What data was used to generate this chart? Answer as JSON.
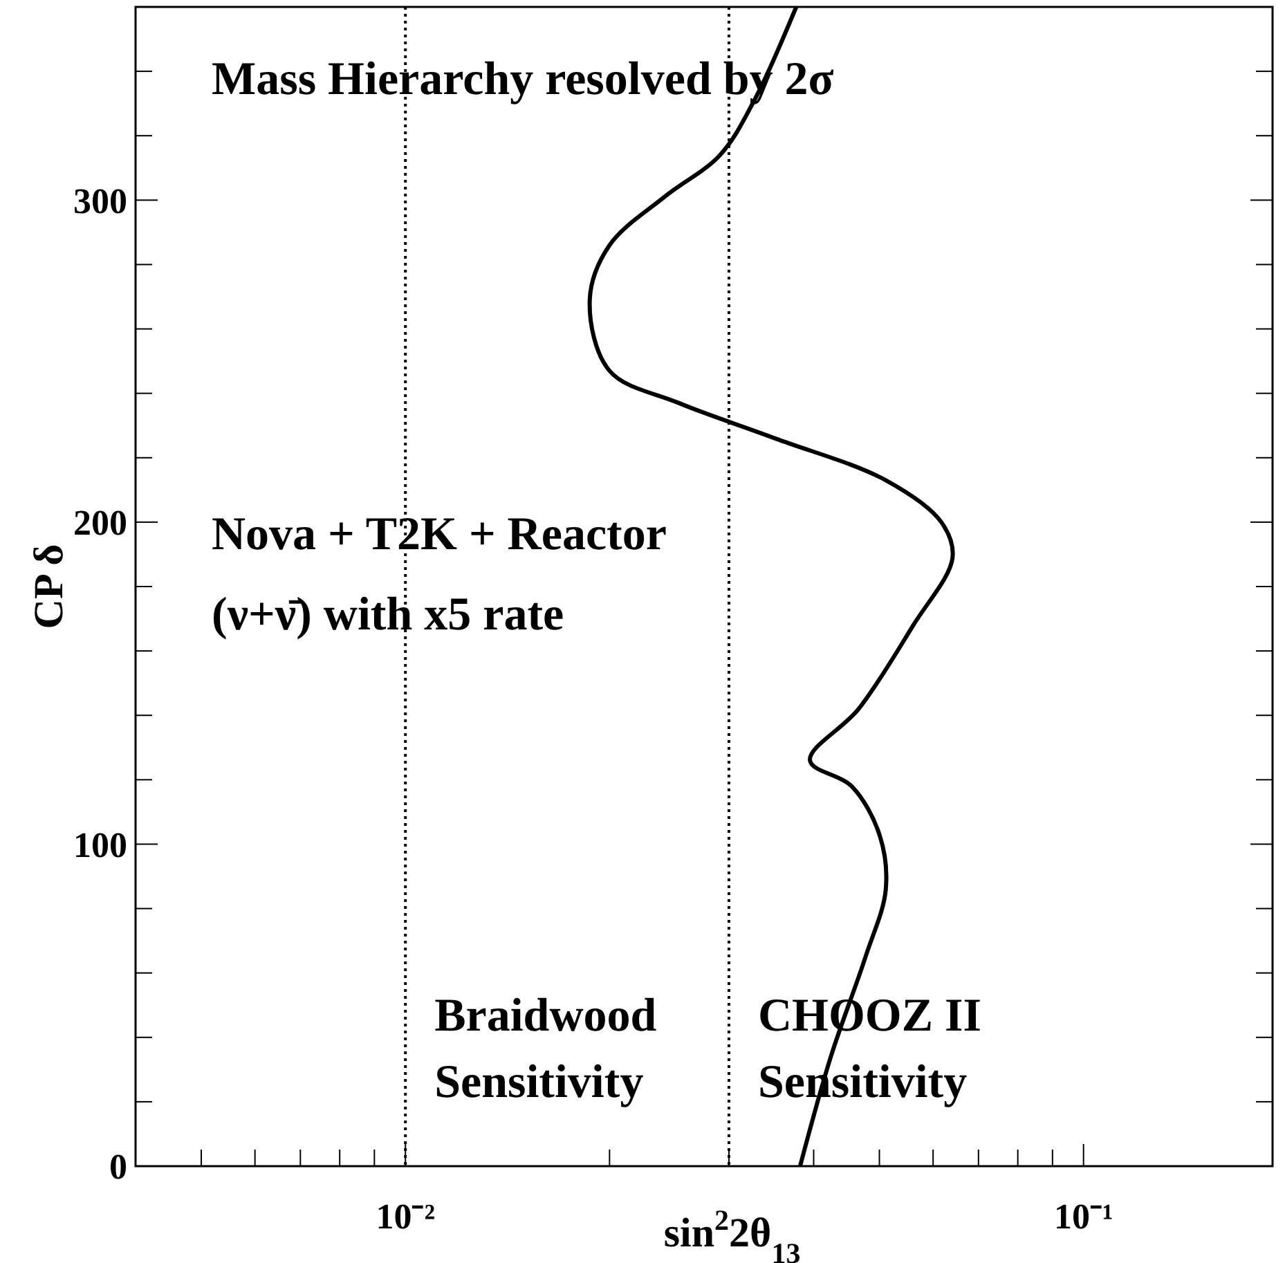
{
  "chart_data": {
    "type": "line",
    "xlabel": "sin$^{2}$2θ$_{13}$",
    "ylabel": "CP δ",
    "log": "x",
    "xlim": [
      0.004,
      0.19
    ],
    "ylim": [
      0,
      360
    ],
    "xticks": [
      {
        "value": 0.005,
        "label": null
      },
      {
        "value": 0.006,
        "label": null
      },
      {
        "value": 0.007,
        "label": null
      },
      {
        "value": 0.008,
        "label": null
      },
      {
        "value": 0.009,
        "label": null
      },
      {
        "value": 0.01,
        "label": "10⁻²"
      },
      {
        "value": 0.02,
        "label": null
      },
      {
        "value": 0.03,
        "label": null
      },
      {
        "value": 0.04,
        "label": null
      },
      {
        "value": 0.05,
        "label": null
      },
      {
        "value": 0.06,
        "label": null
      },
      {
        "value": 0.07,
        "label": null
      },
      {
        "value": 0.08,
        "label": null
      },
      {
        "value": 0.09,
        "label": null
      },
      {
        "value": 0.1,
        "label": "10⁻¹"
      }
    ],
    "yticks": [
      0,
      {
        "value": 20,
        "label": null
      },
      {
        "value": 40,
        "label": null
      },
      {
        "value": 60,
        "label": null
      },
      {
        "value": 80,
        "label": null
      },
      100,
      {
        "value": 120,
        "label": null
      },
      {
        "value": 140,
        "label": null
      },
      {
        "value": 160,
        "label": null
      },
      {
        "value": 180,
        "label": null
      },
      200,
      {
        "value": 220,
        "label": null
      },
      {
        "value": 240,
        "label": null
      },
      {
        "value": 260,
        "label": null
      },
      {
        "value": 280,
        "label": null
      },
      300,
      {
        "value": 320,
        "label": null
      },
      {
        "value": 340,
        "label": null
      }
    ],
    "grid": false,
    "marker": "none",
    "line_style": "solid",
    "series": [
      {
        "color": "#000000",
        "x": [
          0.0382,
          0.0424,
          0.0477,
          0.0511,
          0.05,
          0.0455,
          0.0395,
          0.0466,
          0.0561,
          0.0641,
          0.0617,
          0.0511,
          0.0351,
          0.0253,
          0.02,
          0.0187,
          0.02,
          0.0241,
          0.0291,
          0.0327,
          0.0377
        ],
        "values": [
          0,
          34,
          65,
          86,
          103,
          118,
          126,
          142,
          168,
          189,
          200,
          213,
          226,
          237,
          247,
          269,
          286,
          301,
          314,
          331,
          360
        ]
      }
    ],
    "ref_lines": [
      {
        "axis": "x",
        "value": 0.01,
        "label": "Braidwood Sensitivity",
        "line_style": "dotted",
        "color": "#000000"
      },
      {
        "axis": "x",
        "value": 0.03,
        "label": "CHOOZ II Sensitivity",
        "line_style": "dotted",
        "color": "#000000"
      }
    ],
    "annotations": [
      "Mass Hierarchy resolved by 2σ",
      "Nova + T2K + Reactor",
      "(ν+ν̄) with x5 rate"
    ]
  }
}
